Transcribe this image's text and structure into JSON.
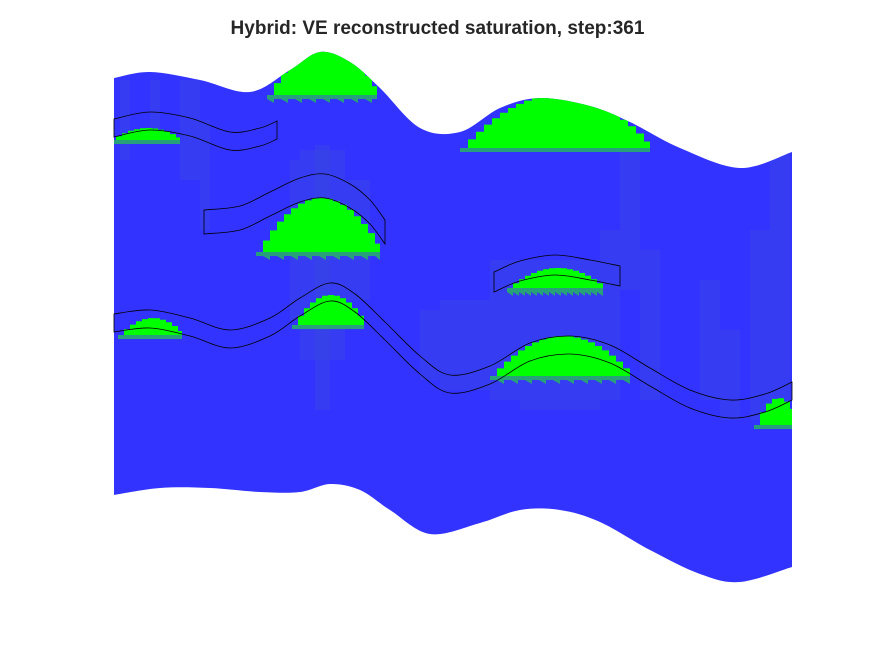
{
  "title": "Hybrid: VE reconstructed saturation, step:361",
  "colors": {
    "water": "#3333ff",
    "co2": "#00ff00",
    "transition": "#3a48e0",
    "outline": "#000000",
    "background": "#ffffff"
  },
  "chart_data": {
    "type": "heatmap",
    "title": "Hybrid: VE reconstructed saturation, step:361",
    "xlabel": "",
    "ylabel": "",
    "axes_visible": false,
    "grid": false,
    "legend": "none",
    "step": 361,
    "description_of_encoding": "",
    "fine_scale_regions": 4
  }
}
